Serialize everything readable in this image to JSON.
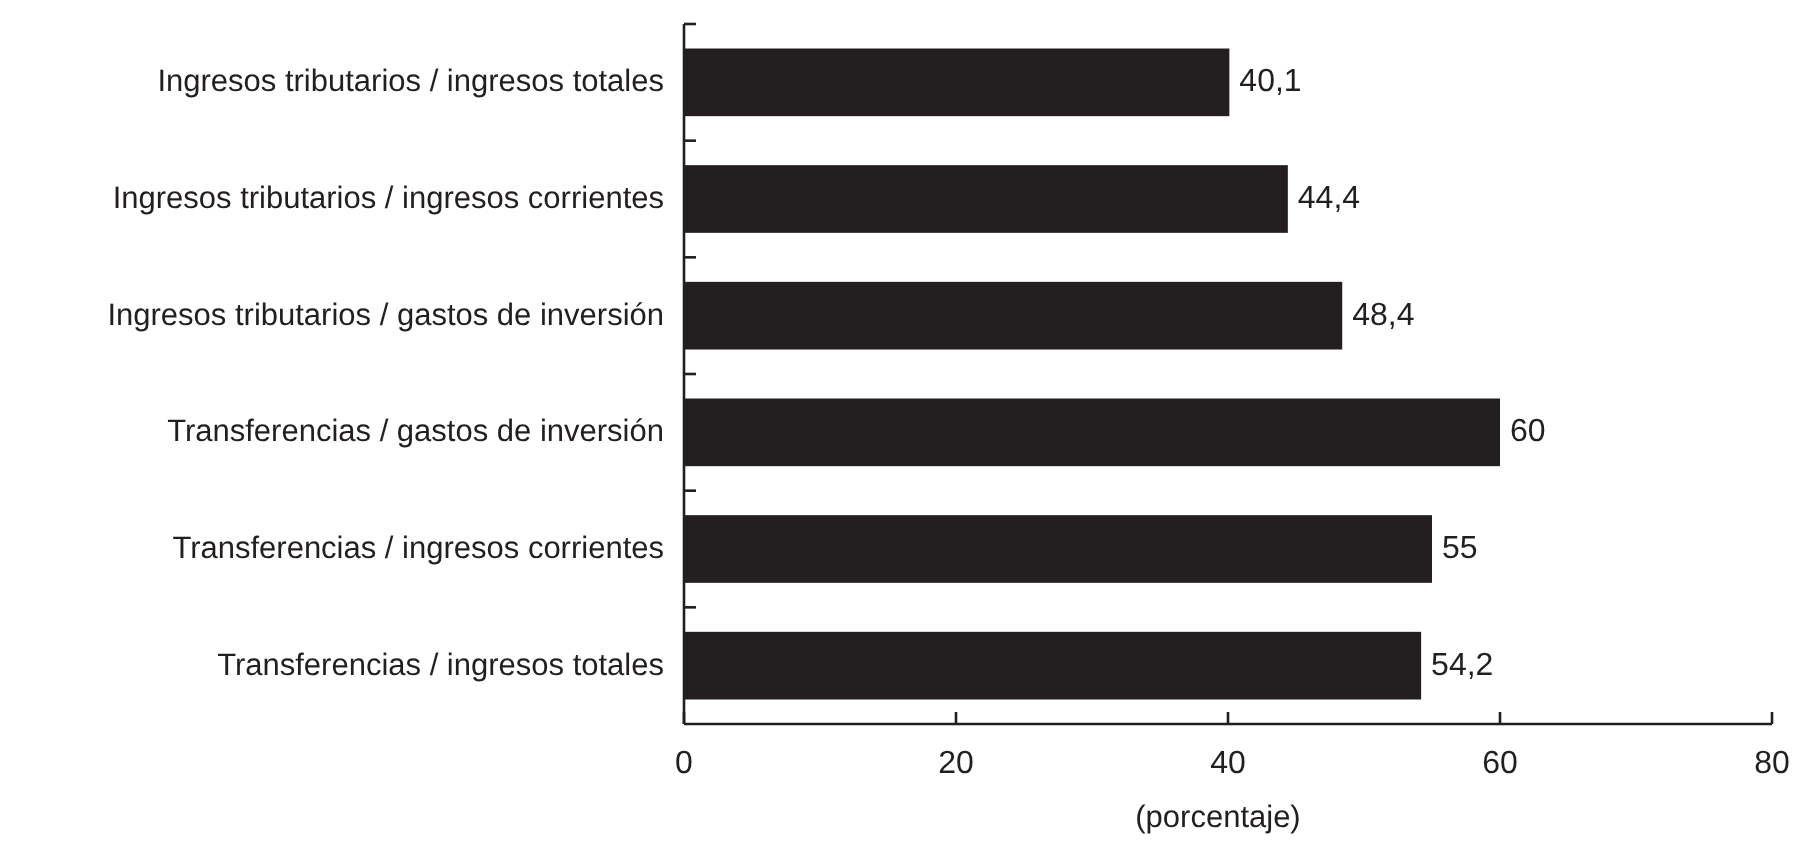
{
  "chart_data": {
    "type": "bar",
    "orientation": "horizontal",
    "categories": [
      "Ingresos tributarios / ingresos totales",
      "Ingresos tributarios / ingresos corrientes",
      "Ingresos tributarios / gastos de inversión",
      "Transferencias / gastos de inversión",
      "Transferencias / ingresos corrientes",
      "Transferencias / ingresos totales"
    ],
    "values": [
      40.1,
      44.4,
      48.4,
      60,
      55,
      54.2
    ],
    "color": "#231f20",
    "value_labels": [
      "40,1",
      "44,4",
      "48,4",
      "60",
      "55",
      "54,2"
    ],
    "xlabel": "(porcentaje)",
    "xlim": [
      0,
      80
    ],
    "xticks": [
      0,
      20,
      40,
      60,
      80
    ]
  }
}
